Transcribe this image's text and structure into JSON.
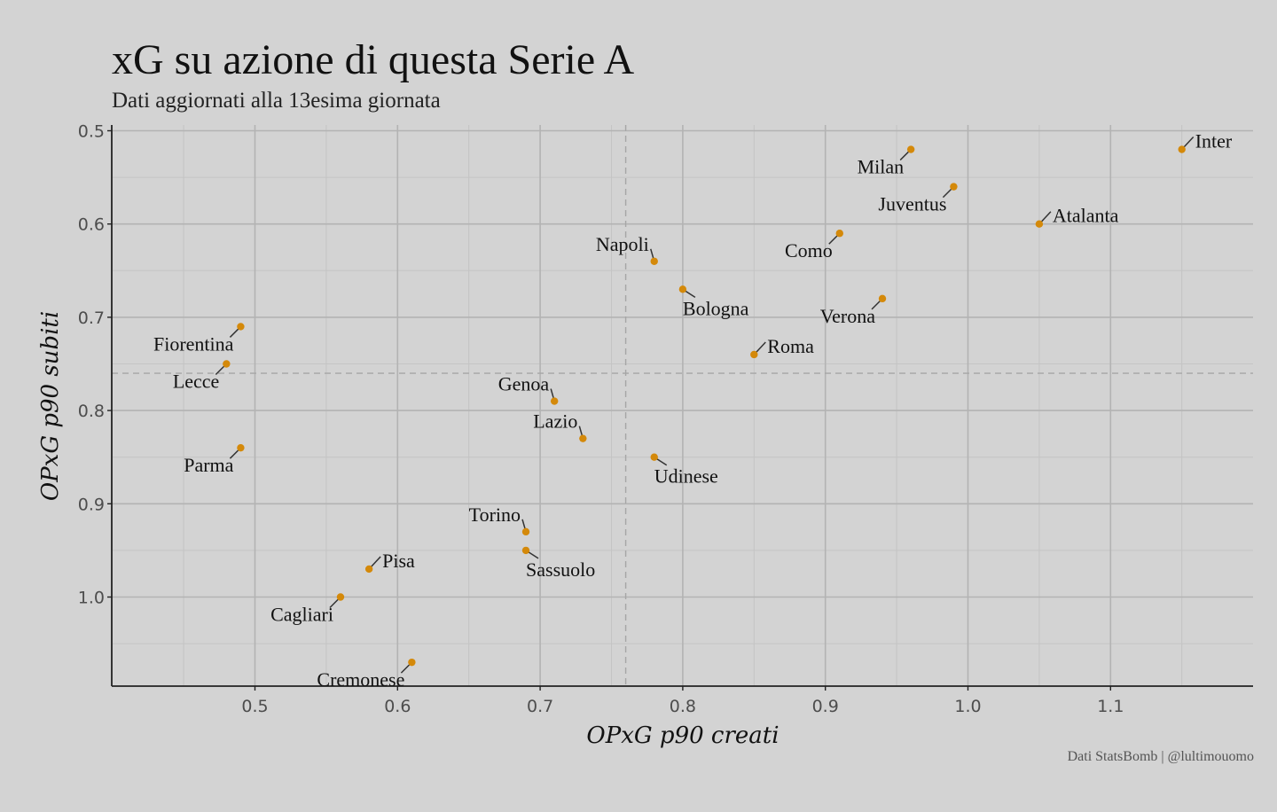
{
  "header": {
    "title": "xG su azione di questa Serie A",
    "subtitle": "Dati aggiornati alla 13esima giornata"
  },
  "caption": "Dati StatsBomb | @lultimouomo",
  "colors": {
    "background": "#d3d3d3",
    "point": "#d4890a",
    "grid_major": "#b3b3b3",
    "grid_minor": "#c4c4c4",
    "reference_line": "#a6a6a6",
    "axis": "#222222"
  },
  "chart_data": {
    "type": "scatter",
    "xlabel": "OPxG p90 creati",
    "ylabel": "OPxG p90 subiti",
    "xlim": [
      0.4,
      1.2
    ],
    "ylim": [
      1.1,
      0.5
    ],
    "y_reversed": true,
    "x_ticks": [
      0.5,
      0.6,
      0.7,
      0.8,
      0.9,
      1.0,
      1.1
    ],
    "x_tick_labels": [
      "0.5",
      "0.6",
      "0.7",
      "0.8",
      "0.9",
      "1.0",
      "1.1"
    ],
    "y_ticks": [
      0.5,
      0.6,
      0.7,
      0.8,
      0.9,
      1.0
    ],
    "y_tick_labels": [
      "0.5",
      "0.6",
      "0.7",
      "0.8",
      "0.9",
      "1.0"
    ],
    "reference_lines": {
      "x": 0.76,
      "y": 0.76
    },
    "grid": true,
    "points": [
      {
        "team": "Inter",
        "x": 1.15,
        "y": 0.52,
        "label_side": "ur"
      },
      {
        "team": "Milan",
        "x": 0.96,
        "y": 0.52,
        "label_side": "dl"
      },
      {
        "team": "Juventus",
        "x": 0.99,
        "y": 0.56,
        "label_side": "dl"
      },
      {
        "team": "Atalanta",
        "x": 1.05,
        "y": 0.6,
        "label_side": "ur"
      },
      {
        "team": "Como",
        "x": 0.91,
        "y": 0.61,
        "label_side": "dl"
      },
      {
        "team": "Napoli",
        "x": 0.78,
        "y": 0.64,
        "label_side": "ul"
      },
      {
        "team": "Bologna",
        "x": 0.8,
        "y": 0.67,
        "label_side": "dr"
      },
      {
        "team": "Verona",
        "x": 0.94,
        "y": 0.68,
        "label_side": "dl"
      },
      {
        "team": "Roma",
        "x": 0.85,
        "y": 0.74,
        "label_side": "ur"
      },
      {
        "team": "Fiorentina",
        "x": 0.49,
        "y": 0.71,
        "label_side": "dl"
      },
      {
        "team": "Lecce",
        "x": 0.48,
        "y": 0.75,
        "label_side": "dl"
      },
      {
        "team": "Genoa",
        "x": 0.71,
        "y": 0.79,
        "label_side": "ul"
      },
      {
        "team": "Lazio",
        "x": 0.73,
        "y": 0.83,
        "label_side": "ul"
      },
      {
        "team": "Udinese",
        "x": 0.78,
        "y": 0.85,
        "label_side": "dr"
      },
      {
        "team": "Parma",
        "x": 0.49,
        "y": 0.84,
        "label_side": "dl"
      },
      {
        "team": "Torino",
        "x": 0.69,
        "y": 0.93,
        "label_side": "ul"
      },
      {
        "team": "Sassuolo",
        "x": 0.69,
        "y": 0.95,
        "label_side": "dr"
      },
      {
        "team": "Pisa",
        "x": 0.58,
        "y": 0.97,
        "label_side": "ur"
      },
      {
        "team": "Cagliari",
        "x": 0.56,
        "y": 1.0,
        "label_side": "dl"
      },
      {
        "team": "Cremonese",
        "x": 0.61,
        "y": 1.07,
        "label_side": "dl"
      }
    ]
  }
}
